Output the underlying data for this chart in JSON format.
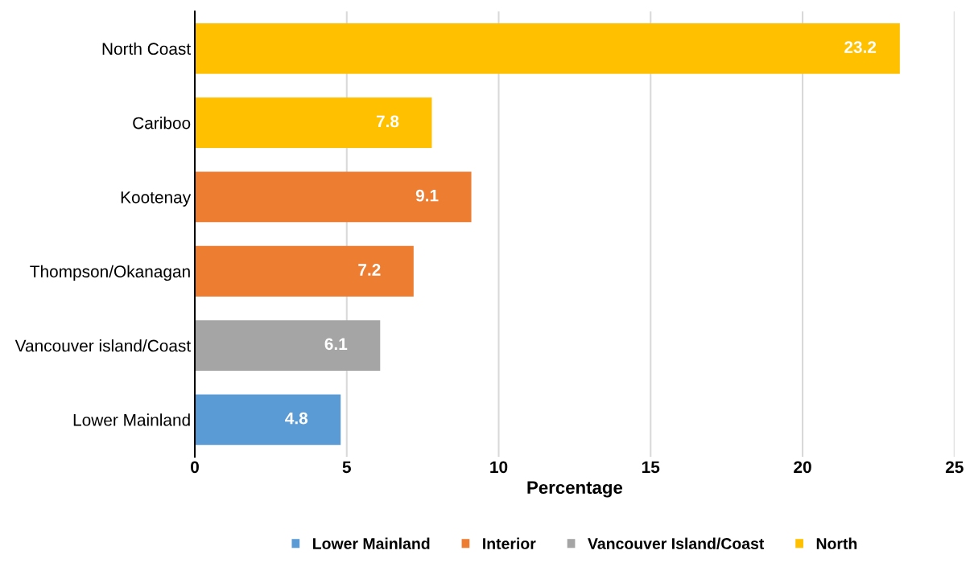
{
  "chart_data": {
    "type": "bar",
    "orientation": "horizontal",
    "stacked": true,
    "xlabel": "Percentage",
    "categories": [
      "North Coast",
      "Cariboo",
      "Kootenay",
      "Thompson/Okanagan",
      "Vancouver island/Coast",
      "Lower Mainland"
    ],
    "series": [
      {
        "name": "Lower Mainland",
        "color": "#5b9bd5",
        "values": [
          null,
          null,
          null,
          null,
          null,
          4.8
        ]
      },
      {
        "name": "Interior",
        "color": "#ed7d31",
        "values": [
          null,
          null,
          9.1,
          7.2,
          null,
          null
        ]
      },
      {
        "name": "Vancouver Island/Coast",
        "color": "#a5a5a5",
        "values": [
          null,
          null,
          null,
          null,
          6.1,
          null
        ]
      },
      {
        "name": "North",
        "color": "#ffc000",
        "values": [
          23.2,
          7.8,
          null,
          null,
          null,
          null
        ]
      }
    ],
    "xlim": [
      0,
      25
    ],
    "xticks": [
      0,
      5,
      10,
      15,
      20,
      25
    ],
    "grid": "x",
    "legend": "bottom",
    "data_labels": true
  }
}
